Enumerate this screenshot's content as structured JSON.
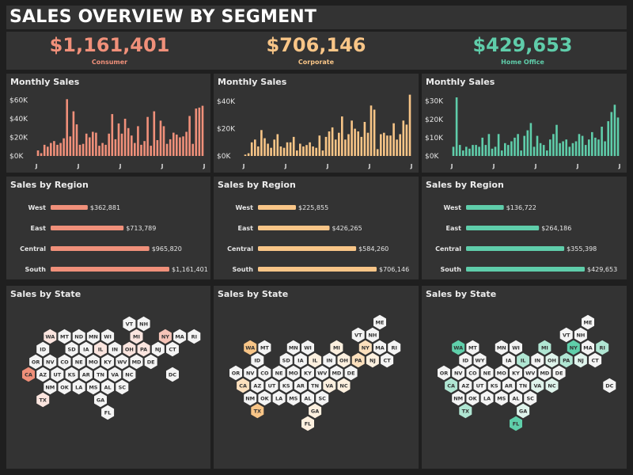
{
  "dashboard": {
    "title": "SALES OVERVIEW BY SEGMENT",
    "monthly_title": "Monthly Sales",
    "region_title": "Sales  by Region",
    "state_title": "Sales by State",
    "colors": {
      "background": "#1f1f1f",
      "panel": "#333333",
      "light_hex": "#f4f4f4",
      "text": "#ffffff"
    }
  },
  "segments": [
    {
      "name": "Consumer",
      "total": "$1,161,401",
      "color": "#f0907a",
      "hex_colors": [
        "#ef8f79",
        "#f6c4b8",
        "#fbe5df"
      ],
      "chart_data": [
        {
          "type": "bar",
          "title": "Monthly Sales",
          "x_ticks": [
            "J",
            "J",
            "J",
            "J",
            "J"
          ],
          "y_ticks": [
            "$0K",
            "$20K",
            "$40K",
            "$60K"
          ],
          "ylim": [
            0,
            63000
          ],
          "values": [
            6000,
            3000,
            12000,
            10000,
            14000,
            16000,
            12000,
            14000,
            19000,
            61000,
            21000,
            48000,
            34000,
            12000,
            13000,
            24000,
            20000,
            26000,
            25000,
            11000,
            14000,
            12000,
            24000,
            45000,
            18000,
            35000,
            24000,
            40000,
            30000,
            22000,
            14000,
            32000,
            12000,
            16000,
            42000,
            11000,
            48000,
            17000,
            38000,
            32000,
            13000,
            18000,
            25000,
            23000,
            20000,
            21000,
            26000,
            43000,
            13000,
            51000,
            52000,
            54000
          ]
        },
        {
          "type": "bar",
          "title": "Sales  by Region",
          "categories": [
            "West",
            "East",
            "Central",
            "South"
          ],
          "values": [
            362881,
            713789,
            965820,
            1161401
          ],
          "labels": [
            "$362,881",
            "$713,789",
            "$965,820",
            "$1,161,401"
          ]
        }
      ]
    },
    {
      "name": "Corporate",
      "total": "$706,146",
      "color": "#f8c587",
      "hex_colors": [
        "#f8c587",
        "#fce0bd",
        "#fdf0df"
      ],
      "chart_data": [
        {
          "type": "bar",
          "title": "Monthly Sales",
          "x_ticks": [
            "J",
            "J",
            "J",
            "J",
            "J"
          ],
          "y_ticks": [
            "$0K",
            "$20K",
            "$40K"
          ],
          "ylim": [
            0,
            43000
          ],
          "values": [
            1000,
            2000,
            10000,
            12000,
            7000,
            19000,
            13000,
            9000,
            6000,
            12000,
            16000,
            7000,
            6000,
            10000,
            10000,
            14000,
            4000,
            9000,
            7000,
            8000,
            10000,
            7000,
            6000,
            15000,
            4000,
            14000,
            18000,
            21000,
            12000,
            17000,
            29000,
            12000,
            16000,
            26000,
            20000,
            18000,
            14000,
            25000,
            17000,
            37000,
            34000,
            5000,
            16000,
            17000,
            15000,
            15000,
            24000,
            12000,
            16000,
            26000,
            23000,
            45000
          ]
        },
        {
          "type": "bar",
          "title": "Sales  by Region",
          "categories": [
            "West",
            "East",
            "Central",
            "South"
          ],
          "values": [
            225855,
            426265,
            584260,
            706146
          ],
          "labels": [
            "$225,855",
            "$426,265",
            "$584,260",
            "$706,146"
          ]
        }
      ]
    },
    {
      "name": "Home Office",
      "total": "$429,653",
      "color": "#5fcdaa",
      "hex_colors": [
        "#5fcfaa",
        "#b0e6d3",
        "#dff4ec"
      ],
      "chart_data": [
        {
          "type": "bar",
          "title": "Monthly Sales",
          "x_ticks": [
            "J",
            "J",
            "J",
            "J",
            "J"
          ],
          "y_ticks": [
            "$0K",
            "$10K",
            "$20K",
            "$30K"
          ],
          "ylim": [
            0,
            32000
          ],
          "values": [
            5000,
            32000,
            6000,
            3000,
            5000,
            4000,
            6000,
            6000,
            5000,
            10000,
            6000,
            12000,
            4000,
            5000,
            12000,
            3000,
            7000,
            6000,
            8000,
            10000,
            12000,
            3000,
            11000,
            14000,
            18000,
            5000,
            11000,
            7000,
            6000,
            3000,
            9000,
            12000,
            17000,
            7000,
            8000,
            9000,
            5000,
            7000,
            8000,
            12000,
            11000,
            6000,
            9000,
            13000,
            10000,
            9000,
            16000,
            8000,
            19000,
            24000,
            28000,
            21000
          ]
        },
        {
          "type": "bar",
          "title": "Sales  by Region",
          "categories": [
            "West",
            "East",
            "Central",
            "South"
          ],
          "values": [
            136722,
            264186,
            355398,
            429653
          ],
          "labels": [
            "$136,722",
            "$264,186",
            "$355,398",
            "$429,653"
          ]
        }
      ]
    }
  ],
  "state_maps": [
    {
      "states": [
        [
          "VT",
          0,
          7
        ],
        [
          "NH",
          0,
          8
        ],
        [
          "WA",
          1,
          1
        ],
        [
          "MT",
          1,
          2
        ],
        [
          "ND",
          1,
          3
        ],
        [
          "MN",
          1,
          4
        ],
        [
          "WI",
          1,
          5
        ],
        [
          "MI",
          1,
          7
        ],
        [
          "NY",
          1,
          9
        ],
        [
          "MA",
          1,
          10
        ],
        [
          "RI",
          1,
          11
        ],
        [
          "ID",
          2,
          1
        ],
        [
          "SD",
          2,
          3
        ],
        [
          "IA",
          2,
          4
        ],
        [
          "IL",
          2,
          5
        ],
        [
          "IN",
          2,
          6
        ],
        [
          "OH",
          2,
          7
        ],
        [
          "PA",
          2,
          8
        ],
        [
          "NJ",
          2,
          9
        ],
        [
          "CT",
          2,
          10
        ],
        [
          "OR",
          3,
          0
        ],
        [
          "NV",
          3,
          1
        ],
        [
          "CO",
          3,
          2
        ],
        [
          "NE",
          3,
          3
        ],
        [
          "MO",
          3,
          4
        ],
        [
          "KY",
          3,
          5
        ],
        [
          "WV",
          3,
          6
        ],
        [
          "MD",
          3,
          7
        ],
        [
          "DE",
          3,
          8
        ],
        [
          "CA",
          4,
          0
        ],
        [
          "AZ",
          4,
          1
        ],
        [
          "UT",
          4,
          2
        ],
        [
          "KS",
          4,
          3
        ],
        [
          "AR",
          4,
          4
        ],
        [
          "TN",
          4,
          5
        ],
        [
          "VA",
          4,
          6
        ],
        [
          "NC",
          4,
          7
        ],
        [
          "DC",
          4,
          10
        ],
        [
          "NM",
          5,
          1
        ],
        [
          "OK",
          5,
          2
        ],
        [
          "LA",
          5,
          3
        ],
        [
          "MS",
          5,
          4
        ],
        [
          "AL",
          5,
          5
        ],
        [
          "SC",
          5,
          6
        ],
        [
          "TX",
          6,
          1
        ],
        [
          "GA",
          6,
          5
        ],
        [
          "FL",
          7,
          5
        ]
      ],
      "shade": {
        "CA": 0,
        "NY": 1,
        "WA": 2,
        "PA": 2,
        "TX": 2,
        "MI": 2,
        "IL": 2,
        "OH": 2
      }
    },
    {
      "states": [
        [
          "ME",
          0,
          10
        ],
        [
          "VT",
          1,
          8
        ],
        [
          "NH",
          1,
          9
        ],
        [
          "WA",
          2,
          1
        ],
        [
          "MT",
          2,
          2
        ],
        [
          "MN",
          2,
          4
        ],
        [
          "WI",
          2,
          5
        ],
        [
          "MI",
          2,
          7
        ],
        [
          "NY",
          2,
          9
        ],
        [
          "MA",
          2,
          10
        ],
        [
          "RI",
          2,
          11
        ],
        [
          "ID",
          3,
          1
        ],
        [
          "SD",
          3,
          3
        ],
        [
          "IA",
          3,
          4
        ],
        [
          "IL",
          3,
          5
        ],
        [
          "IN",
          3,
          6
        ],
        [
          "OH",
          3,
          7
        ],
        [
          "PA",
          3,
          8
        ],
        [
          "NJ",
          3,
          9
        ],
        [
          "CT",
          3,
          10
        ],
        [
          "OR",
          4,
          0
        ],
        [
          "NV",
          4,
          1
        ],
        [
          "CO",
          4,
          2
        ],
        [
          "NE",
          4,
          3
        ],
        [
          "MO",
          4,
          4
        ],
        [
          "KY",
          4,
          5
        ],
        [
          "WV",
          4,
          6
        ],
        [
          "MD",
          4,
          7
        ],
        [
          "DE",
          4,
          8
        ],
        [
          "CA",
          5,
          0
        ],
        [
          "AZ",
          5,
          1
        ],
        [
          "UT",
          5,
          2
        ],
        [
          "KS",
          5,
          3
        ],
        [
          "AR",
          5,
          4
        ],
        [
          "TN",
          5,
          5
        ],
        [
          "VA",
          5,
          6
        ],
        [
          "NC",
          5,
          7
        ],
        [
          "NM",
          6,
          1
        ],
        [
          "OK",
          6,
          2
        ],
        [
          "LA",
          6,
          3
        ],
        [
          "MS",
          6,
          4
        ],
        [
          "AL",
          6,
          5
        ],
        [
          "SC",
          6,
          6
        ],
        [
          "TX",
          7,
          1
        ],
        [
          "GA",
          7,
          5
        ],
        [
          "FL",
          8,
          5
        ]
      ],
      "shade": {
        "CA": 1,
        "WA": 0,
        "TX": 0,
        "NY": 1,
        "PA": 1,
        "IL": 2,
        "OH": 2,
        "MI": 2,
        "VA": 2,
        "NJ": 2,
        "NC": 2,
        "FL": 2,
        "GA": 2
      }
    },
    {
      "states": [
        [
          "ME",
          0,
          10
        ],
        [
          "VT",
          1,
          8
        ],
        [
          "NH",
          1,
          9
        ],
        [
          "WA",
          2,
          1
        ],
        [
          "MT",
          2,
          2
        ],
        [
          "MN",
          2,
          4
        ],
        [
          "WI",
          2,
          5
        ],
        [
          "MI",
          2,
          7
        ],
        [
          "NY",
          2,
          9
        ],
        [
          "MA",
          2,
          10
        ],
        [
          "RI",
          2,
          11
        ],
        [
          "ID",
          3,
          1
        ],
        [
          "WY",
          3,
          2
        ],
        [
          "IA",
          3,
          4
        ],
        [
          "IL",
          3,
          5
        ],
        [
          "IN",
          3,
          6
        ],
        [
          "OH",
          3,
          7
        ],
        [
          "PA",
          3,
          8
        ],
        [
          "NJ",
          3,
          9
        ],
        [
          "CT",
          3,
          10
        ],
        [
          "OR",
          4,
          0
        ],
        [
          "NV",
          4,
          1
        ],
        [
          "CO",
          4,
          2
        ],
        [
          "NE",
          4,
          3
        ],
        [
          "MO",
          4,
          4
        ],
        [
          "KY",
          4,
          5
        ],
        [
          "WV",
          4,
          6
        ],
        [
          "MD",
          4,
          7
        ],
        [
          "DE",
          4,
          8
        ],
        [
          "CA",
          5,
          0
        ],
        [
          "AZ",
          5,
          1
        ],
        [
          "UT",
          5,
          2
        ],
        [
          "KS",
          5,
          3
        ],
        [
          "AR",
          5,
          4
        ],
        [
          "TN",
          5,
          5
        ],
        [
          "VA",
          5,
          6
        ],
        [
          "NC",
          5,
          7
        ],
        [
          "DC",
          5,
          11
        ],
        [
          "NM",
          6,
          1
        ],
        [
          "OK",
          6,
          2
        ],
        [
          "LA",
          6,
          3
        ],
        [
          "MS",
          6,
          4
        ],
        [
          "AL",
          6,
          5
        ],
        [
          "SC",
          6,
          6
        ],
        [
          "TX",
          7,
          1
        ],
        [
          "GA",
          7,
          5
        ],
        [
          "FL",
          8,
          5
        ]
      ],
      "shade": {
        "CA": 1,
        "WA": 0,
        "NY": 0,
        "FL": 0,
        "RI": 1,
        "TX": 1,
        "MI": 1,
        "IL": 1,
        "PA": 1,
        "OH": 2,
        "NJ": 2,
        "VA": 2,
        "GA": 2,
        "NC": 2
      }
    }
  ]
}
